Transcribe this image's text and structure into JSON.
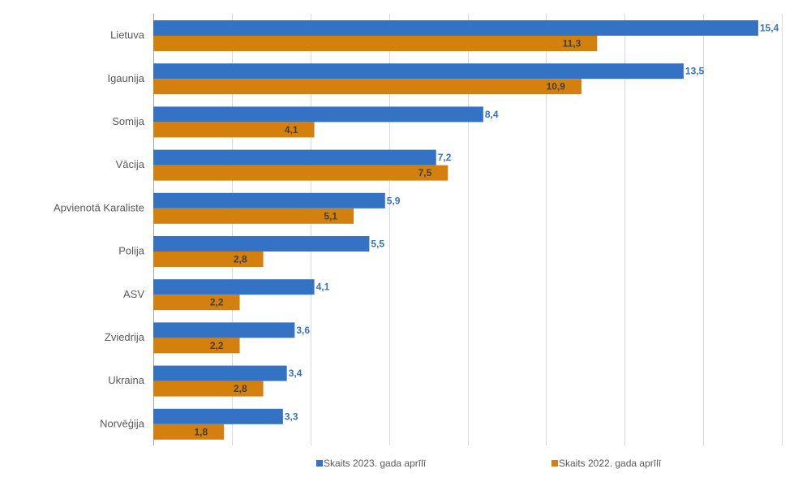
{
  "chart_data": {
    "type": "bar",
    "orientation": "horizontal",
    "categories": [
      "Lietuva",
      "Igaunija",
      "Somija",
      "Vācija",
      "Apvienotā Karaliste",
      "Polija",
      "ASV",
      "Zviedrija",
      "Ukraina",
      "Norvēģija"
    ],
    "series": [
      {
        "name": "Skaits 2023. gada aprīlī",
        "color": "#3472c4",
        "label_color": "#3472c4",
        "values": [
          15.4,
          13.5,
          8.4,
          7.2,
          5.9,
          5.5,
          4.1,
          3.6,
          3.4,
          3.3
        ],
        "labels": [
          "15,4",
          "13,5",
          "8,4",
          "7,2",
          "5,9",
          "5,5",
          "4,1",
          "3,6",
          "3,4",
          "3,3"
        ]
      },
      {
        "name": "Skaits 2022. gada aprīlī",
        "color": "#d4800f",
        "label_color": "#404040",
        "values": [
          11.3,
          10.9,
          4.1,
          7.5,
          5.1,
          2.8,
          2.2,
          2.2,
          2.8,
          1.8
        ],
        "labels": [
          "11,3",
          "10,9",
          "4,1",
          "7,5",
          "5,1",
          "2,8",
          "2,2",
          "2,2",
          "2,8",
          "1,8"
        ]
      }
    ],
    "xlim": [
      0,
      16
    ],
    "grid": true,
    "legend": "bottom",
    "title": "",
    "xlabel": "",
    "ylabel": ""
  }
}
